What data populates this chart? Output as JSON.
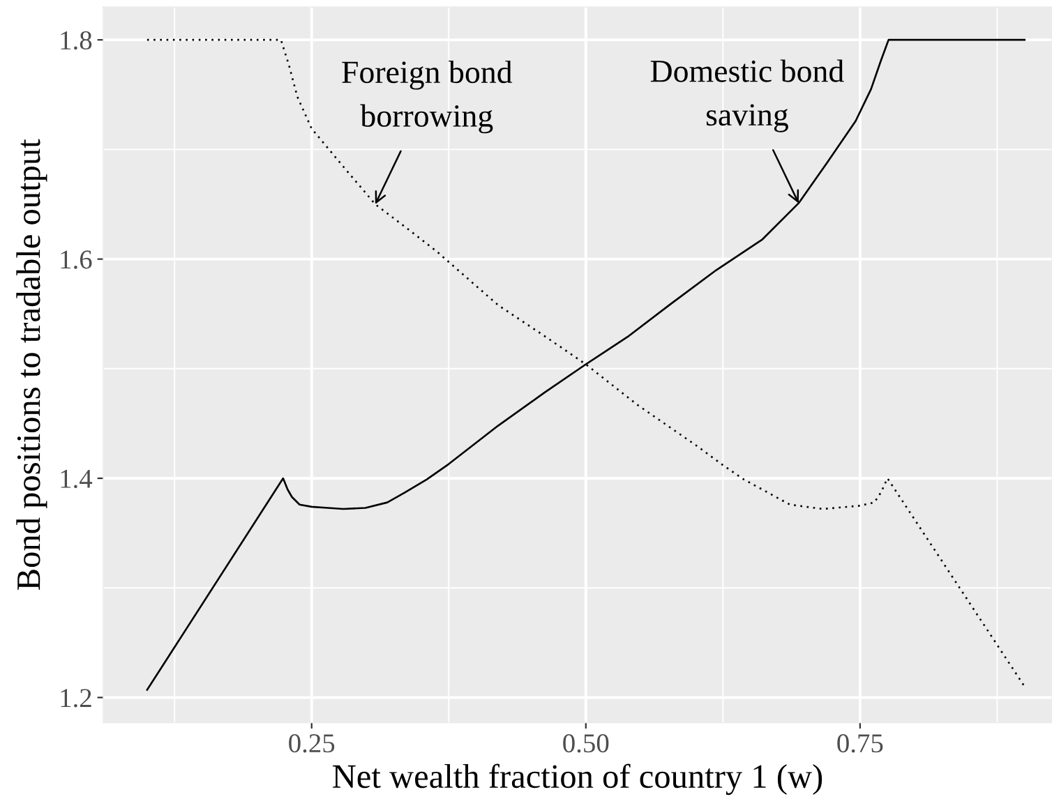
{
  "chart_data": {
    "type": "line",
    "xlabel": "Net wealth fraction of country 1 (w)",
    "ylabel": "Bond positions to tradable output",
    "series": [
      {
        "color": "#000000",
        "line_style": "solid",
        "x": [
          0.1,
          0.224,
          0.228,
          0.232,
          0.239,
          0.25,
          0.265,
          0.279,
          0.299,
          0.319,
          0.335,
          0.355,
          0.375,
          0.42,
          0.462,
          0.5,
          0.538,
          0.576,
          0.619,
          0.661,
          0.694,
          0.72,
          0.746,
          0.76,
          0.769,
          0.776,
          0.9
        ],
        "values": [
          1.207,
          1.4,
          1.39,
          1.383,
          1.376,
          1.374,
          1.373,
          1.372,
          1.373,
          1.378,
          1.387,
          1.399,
          1.413,
          1.448,
          1.478,
          1.504,
          1.529,
          1.558,
          1.59,
          1.618,
          1.651,
          1.688,
          1.726,
          1.755,
          1.781,
          1.8,
          1.8
        ]
      },
      {
        "color": "#000000",
        "line_style": "dotted",
        "x": [
          0.1,
          0.222,
          0.229,
          0.237,
          0.25,
          0.28,
          0.308,
          0.337,
          0.364,
          0.42,
          0.462,
          0.5,
          0.547,
          0.602,
          0.625,
          0.644,
          0.686,
          0.716,
          0.75,
          0.763,
          0.769,
          0.775,
          0.9
        ],
        "values": [
          1.8,
          1.8,
          1.778,
          1.748,
          1.719,
          1.683,
          1.65,
          1.628,
          1.607,
          1.558,
          1.53,
          1.504,
          1.467,
          1.429,
          1.412,
          1.399,
          1.376,
          1.372,
          1.375,
          1.378,
          1.387,
          1.4,
          1.21
        ]
      }
    ],
    "xlim": [
      0.06,
      0.925
    ],
    "ylim": [
      1.177,
      1.83
    ],
    "xticks": [
      {
        "value": 0.25,
        "label": "0.25"
      },
      {
        "value": 0.5,
        "label": "0.50"
      },
      {
        "value": 0.75,
        "label": "0.75"
      }
    ],
    "yticks": [
      1.2,
      1.4,
      1.6,
      1.8
    ],
    "grid": true,
    "annotations": [
      {
        "text": "Foreign bond\nborrowing",
        "x": 0.308,
        "y": 1.65
      },
      {
        "text": "Domestic bond\nsaving",
        "x": 0.694,
        "y": 1.651
      }
    ]
  }
}
